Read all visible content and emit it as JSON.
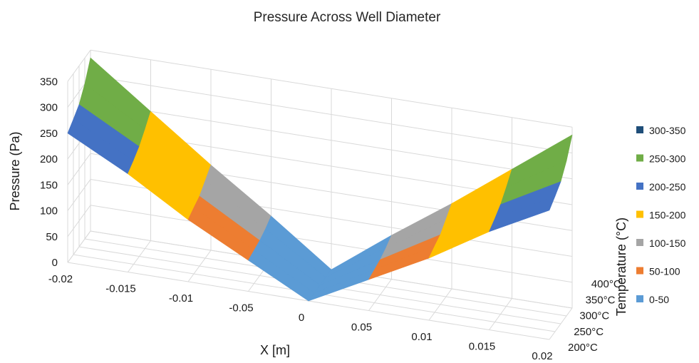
{
  "chart_data": {
    "type": "surface",
    "title": "Pressure Across Well Diameter",
    "xlabel": "X [m]",
    "ylabel": "Pressure (Pa)",
    "zlabel": "Temperature (°C)",
    "x_ticks": [
      "-0.02",
      "-0.015",
      "-0.01",
      "-0.05",
      "0",
      "0.05",
      "0.01",
      "0.015",
      "0.02"
    ],
    "y_ticks": [
      "0",
      "50",
      "100",
      "150",
      "200",
      "250",
      "300",
      "350"
    ],
    "z_ticks": [
      "200°C",
      "250°C",
      "300°C",
      "350°C",
      "400°C"
    ],
    "ylim": [
      0,
      350
    ],
    "series": [
      {
        "name": "200°C",
        "values": [
          250,
          190,
          120,
          60,
          0,
          60,
          120,
          190,
          250
        ]
      },
      {
        "name": "250°C",
        "values": [
          262,
          200,
          128,
          64,
          0,
          64,
          128,
          200,
          262
        ]
      },
      {
        "name": "300°C",
        "values": [
          275,
          212,
          135,
          68,
          0,
          68,
          135,
          212,
          275
        ]
      },
      {
        "name": "350°C",
        "values": [
          300,
          230,
          150,
          75,
          0,
          75,
          150,
          230,
          300
        ]
      },
      {
        "name": "400°C",
        "values": [
          335,
          250,
          165,
          85,
          0,
          85,
          165,
          250,
          335
        ]
      }
    ],
    "legend": {
      "position": "right",
      "entries": [
        {
          "label": "300-350",
          "color": "#1f4e79"
        },
        {
          "label": "250-300",
          "color": "#70ad47"
        },
        {
          "label": "200-250",
          "color": "#4472c4"
        },
        {
          "label": "150-200",
          "color": "#ffc000"
        },
        {
          "label": "100-150",
          "color": "#a5a5a5"
        },
        {
          "label": "50-100",
          "color": "#ed7d31"
        },
        {
          "label": "0-50",
          "color": "#5b9bd5"
        }
      ]
    },
    "grid": true
  }
}
